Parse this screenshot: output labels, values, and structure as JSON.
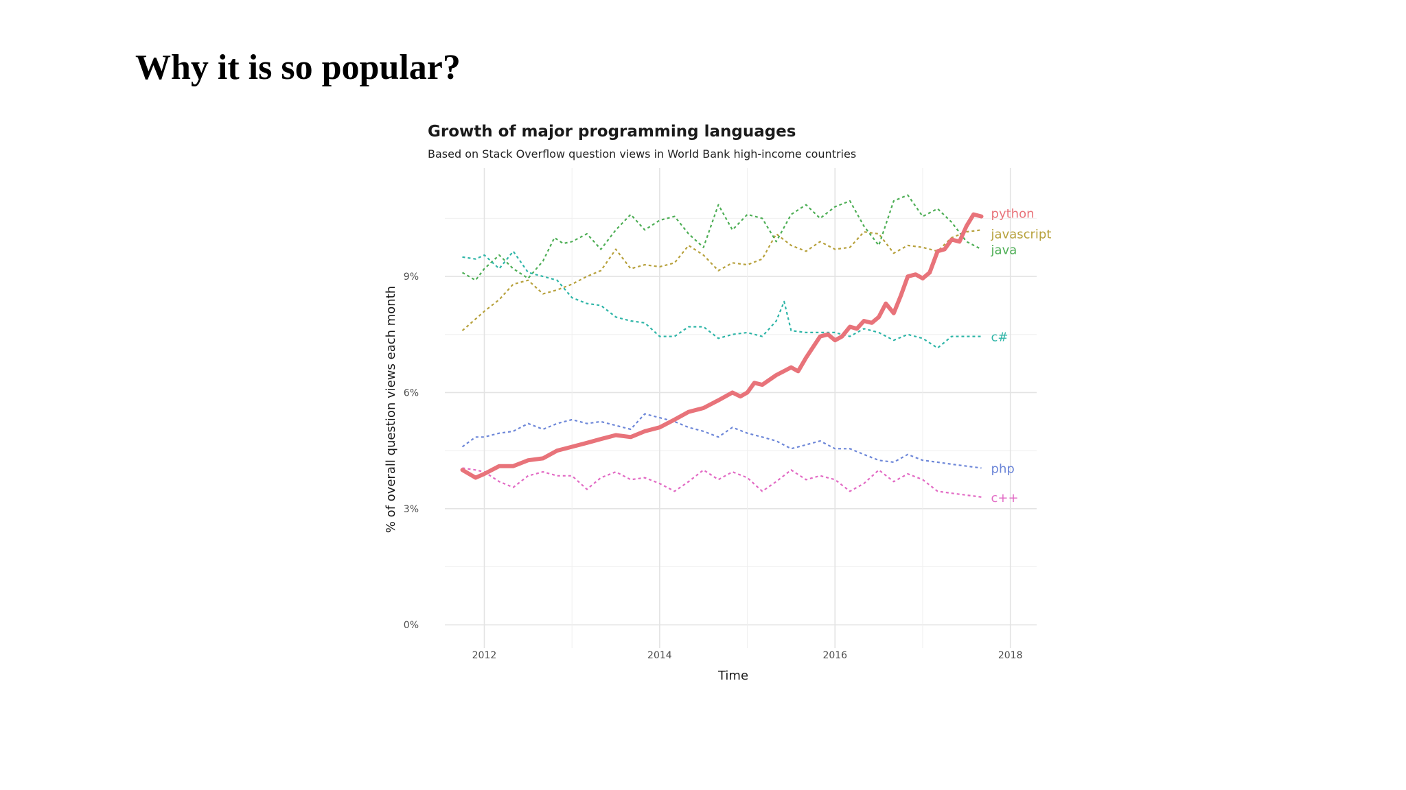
{
  "slide": {
    "title": "Why it is so popular?"
  },
  "chart_data": {
    "type": "line",
    "title": "Growth of major programming languages",
    "subtitle": "Based on Stack Overflow question views in World Bank high-income countries",
    "xlabel": "Time",
    "ylabel": "% of overall question views each month",
    "xlim": [
      2011.55,
      2018.3
    ],
    "ylim": [
      -0.6,
      11.8
    ],
    "x_ticks": [
      2012,
      2014,
      2016,
      2018
    ],
    "x_tick_labels": [
      "2012",
      "2014",
      "2016",
      "2018"
    ],
    "y_ticks": [
      0,
      3,
      6,
      9
    ],
    "y_tick_labels": [
      "0%",
      "3%",
      "6%",
      "9%"
    ],
    "grid": true,
    "legend": "direct labels at right end of lines",
    "series": [
      {
        "name": "python",
        "color": "#E8737A",
        "style": "solid",
        "points": [
          [
            2011.75,
            4.0
          ],
          [
            2011.9,
            3.8
          ],
          [
            2012.0,
            3.9
          ],
          [
            2012.17,
            4.1
          ],
          [
            2012.33,
            4.1
          ],
          [
            2012.5,
            4.25
          ],
          [
            2012.67,
            4.3
          ],
          [
            2012.83,
            4.5
          ],
          [
            2013.0,
            4.6
          ],
          [
            2013.17,
            4.7
          ],
          [
            2013.33,
            4.8
          ],
          [
            2013.5,
            4.9
          ],
          [
            2013.67,
            4.85
          ],
          [
            2013.83,
            5.0
          ],
          [
            2014.0,
            5.1
          ],
          [
            2014.17,
            5.3
          ],
          [
            2014.33,
            5.5
          ],
          [
            2014.5,
            5.6
          ],
          [
            2014.67,
            5.8
          ],
          [
            2014.83,
            6.0
          ],
          [
            2014.92,
            5.9
          ],
          [
            2015.0,
            6.0
          ],
          [
            2015.08,
            6.25
          ],
          [
            2015.17,
            6.2
          ],
          [
            2015.33,
            6.45
          ],
          [
            2015.5,
            6.65
          ],
          [
            2015.58,
            6.55
          ],
          [
            2015.67,
            6.9
          ],
          [
            2015.83,
            7.45
          ],
          [
            2015.92,
            7.5
          ],
          [
            2016.0,
            7.35
          ],
          [
            2016.08,
            7.45
          ],
          [
            2016.17,
            7.7
          ],
          [
            2016.25,
            7.65
          ],
          [
            2016.33,
            7.85
          ],
          [
            2016.42,
            7.8
          ],
          [
            2016.5,
            7.95
          ],
          [
            2016.58,
            8.3
          ],
          [
            2016.67,
            8.05
          ],
          [
            2016.75,
            8.5
          ],
          [
            2016.83,
            9.0
          ],
          [
            2016.92,
            9.05
          ],
          [
            2017.0,
            8.95
          ],
          [
            2017.08,
            9.1
          ],
          [
            2017.17,
            9.65
          ],
          [
            2017.25,
            9.7
          ],
          [
            2017.33,
            9.95
          ],
          [
            2017.42,
            9.9
          ],
          [
            2017.5,
            10.3
          ],
          [
            2017.58,
            10.6
          ],
          [
            2017.67,
            10.55
          ]
        ]
      },
      {
        "name": "javascript",
        "color": "#B7A13C",
        "style": "dashed",
        "points": [
          [
            2011.75,
            7.6
          ],
          [
            2011.9,
            7.9
          ],
          [
            2012.0,
            8.1
          ],
          [
            2012.17,
            8.4
          ],
          [
            2012.33,
            8.8
          ],
          [
            2012.5,
            8.9
          ],
          [
            2012.67,
            8.55
          ],
          [
            2012.83,
            8.65
          ],
          [
            2013.0,
            8.8
          ],
          [
            2013.17,
            9.0
          ],
          [
            2013.33,
            9.15
          ],
          [
            2013.5,
            9.7
          ],
          [
            2013.67,
            9.2
          ],
          [
            2013.83,
            9.3
          ],
          [
            2014.0,
            9.25
          ],
          [
            2014.17,
            9.35
          ],
          [
            2014.33,
            9.8
          ],
          [
            2014.5,
            9.55
          ],
          [
            2014.67,
            9.15
          ],
          [
            2014.83,
            9.35
          ],
          [
            2015.0,
            9.3
          ],
          [
            2015.17,
            9.45
          ],
          [
            2015.33,
            10.1
          ],
          [
            2015.5,
            9.8
          ],
          [
            2015.67,
            9.65
          ],
          [
            2015.83,
            9.9
          ],
          [
            2016.0,
            9.7
          ],
          [
            2016.17,
            9.75
          ],
          [
            2016.33,
            10.15
          ],
          [
            2016.5,
            10.1
          ],
          [
            2016.67,
            9.6
          ],
          [
            2016.83,
            9.8
          ],
          [
            2017.0,
            9.75
          ],
          [
            2017.17,
            9.65
          ],
          [
            2017.33,
            10.0
          ],
          [
            2017.5,
            10.15
          ],
          [
            2017.67,
            10.2
          ]
        ]
      },
      {
        "name": "java",
        "color": "#4DAE55",
        "style": "dashed",
        "points": [
          [
            2011.75,
            9.1
          ],
          [
            2011.9,
            8.9
          ],
          [
            2012.0,
            9.2
          ],
          [
            2012.17,
            9.55
          ],
          [
            2012.33,
            9.2
          ],
          [
            2012.5,
            8.95
          ],
          [
            2012.67,
            9.4
          ],
          [
            2012.8,
            10.0
          ],
          [
            2012.9,
            9.85
          ],
          [
            2013.0,
            9.9
          ],
          [
            2013.17,
            10.1
          ],
          [
            2013.33,
            9.7
          ],
          [
            2013.5,
            10.2
          ],
          [
            2013.67,
            10.6
          ],
          [
            2013.83,
            10.2
          ],
          [
            2014.0,
            10.45
          ],
          [
            2014.17,
            10.55
          ],
          [
            2014.33,
            10.1
          ],
          [
            2014.5,
            9.75
          ],
          [
            2014.67,
            10.85
          ],
          [
            2014.83,
            10.2
          ],
          [
            2015.0,
            10.6
          ],
          [
            2015.17,
            10.5
          ],
          [
            2015.33,
            9.9
          ],
          [
            2015.5,
            10.6
          ],
          [
            2015.67,
            10.85
          ],
          [
            2015.83,
            10.5
          ],
          [
            2016.0,
            10.8
          ],
          [
            2016.17,
            10.95
          ],
          [
            2016.33,
            10.3
          ],
          [
            2016.5,
            9.8
          ],
          [
            2016.67,
            10.95
          ],
          [
            2016.83,
            11.1
          ],
          [
            2017.0,
            10.55
          ],
          [
            2017.17,
            10.75
          ],
          [
            2017.33,
            10.4
          ],
          [
            2017.5,
            9.9
          ],
          [
            2017.67,
            9.7
          ]
        ]
      },
      {
        "name": "c#",
        "color": "#2EB5A7",
        "style": "dashed",
        "points": [
          [
            2011.75,
            9.5
          ],
          [
            2011.9,
            9.45
          ],
          [
            2012.0,
            9.55
          ],
          [
            2012.17,
            9.2
          ],
          [
            2012.33,
            9.65
          ],
          [
            2012.5,
            9.1
          ],
          [
            2012.67,
            9.0
          ],
          [
            2012.83,
            8.9
          ],
          [
            2013.0,
            8.45
          ],
          [
            2013.17,
            8.3
          ],
          [
            2013.33,
            8.25
          ],
          [
            2013.5,
            7.95
          ],
          [
            2013.67,
            7.85
          ],
          [
            2013.83,
            7.8
          ],
          [
            2014.0,
            7.45
          ],
          [
            2014.17,
            7.45
          ],
          [
            2014.33,
            7.7
          ],
          [
            2014.5,
            7.7
          ],
          [
            2014.67,
            7.4
          ],
          [
            2014.83,
            7.5
          ],
          [
            2015.0,
            7.55
          ],
          [
            2015.17,
            7.45
          ],
          [
            2015.33,
            7.85
          ],
          [
            2015.42,
            8.35
          ],
          [
            2015.5,
            7.6
          ],
          [
            2015.67,
            7.55
          ],
          [
            2015.83,
            7.55
          ],
          [
            2016.0,
            7.55
          ],
          [
            2016.17,
            7.45
          ],
          [
            2016.33,
            7.65
          ],
          [
            2016.5,
            7.55
          ],
          [
            2016.67,
            7.35
          ],
          [
            2016.83,
            7.5
          ],
          [
            2017.0,
            7.4
          ],
          [
            2017.17,
            7.15
          ],
          [
            2017.33,
            7.45
          ],
          [
            2017.5,
            7.45
          ],
          [
            2017.67,
            7.45
          ]
        ]
      },
      {
        "name": "php",
        "color": "#6C86D8",
        "style": "dashed",
        "points": [
          [
            2011.75,
            4.6
          ],
          [
            2011.9,
            4.85
          ],
          [
            2012.0,
            4.85
          ],
          [
            2012.17,
            4.95
          ],
          [
            2012.33,
            5.0
          ],
          [
            2012.5,
            5.2
          ],
          [
            2012.67,
            5.05
          ],
          [
            2012.83,
            5.2
          ],
          [
            2013.0,
            5.3
          ],
          [
            2013.17,
            5.2
          ],
          [
            2013.33,
            5.25
          ],
          [
            2013.5,
            5.15
          ],
          [
            2013.67,
            5.05
          ],
          [
            2013.83,
            5.45
          ],
          [
            2014.0,
            5.35
          ],
          [
            2014.17,
            5.25
          ],
          [
            2014.33,
            5.1
          ],
          [
            2014.5,
            5.0
          ],
          [
            2014.67,
            4.85
          ],
          [
            2014.83,
            5.1
          ],
          [
            2015.0,
            4.95
          ],
          [
            2015.17,
            4.85
          ],
          [
            2015.33,
            4.75
          ],
          [
            2015.5,
            4.55
          ],
          [
            2015.67,
            4.65
          ],
          [
            2015.83,
            4.75
          ],
          [
            2016.0,
            4.55
          ],
          [
            2016.17,
            4.55
          ],
          [
            2016.33,
            4.4
          ],
          [
            2016.5,
            4.25
          ],
          [
            2016.67,
            4.2
          ],
          [
            2016.83,
            4.4
          ],
          [
            2017.0,
            4.25
          ],
          [
            2017.17,
            4.2
          ],
          [
            2017.33,
            4.15
          ],
          [
            2017.5,
            4.1
          ],
          [
            2017.67,
            4.05
          ]
        ]
      },
      {
        "name": "c++",
        "color": "#E26AC4",
        "style": "dashed",
        "points": [
          [
            2011.75,
            4.05
          ],
          [
            2011.9,
            4.0
          ],
          [
            2012.0,
            3.95
          ],
          [
            2012.17,
            3.7
          ],
          [
            2012.33,
            3.55
          ],
          [
            2012.5,
            3.85
          ],
          [
            2012.67,
            3.95
          ],
          [
            2012.83,
            3.85
          ],
          [
            2013.0,
            3.85
          ],
          [
            2013.17,
            3.5
          ],
          [
            2013.33,
            3.8
          ],
          [
            2013.5,
            3.95
          ],
          [
            2013.67,
            3.75
          ],
          [
            2013.83,
            3.8
          ],
          [
            2014.0,
            3.65
          ],
          [
            2014.17,
            3.45
          ],
          [
            2014.33,
            3.7
          ],
          [
            2014.5,
            4.0
          ],
          [
            2014.67,
            3.75
          ],
          [
            2014.83,
            3.95
          ],
          [
            2015.0,
            3.8
          ],
          [
            2015.17,
            3.45
          ],
          [
            2015.33,
            3.7
          ],
          [
            2015.5,
            4.0
          ],
          [
            2015.67,
            3.75
          ],
          [
            2015.83,
            3.85
          ],
          [
            2016.0,
            3.75
          ],
          [
            2016.17,
            3.45
          ],
          [
            2016.33,
            3.65
          ],
          [
            2016.5,
            4.0
          ],
          [
            2016.67,
            3.7
          ],
          [
            2016.83,
            3.9
          ],
          [
            2017.0,
            3.75
          ],
          [
            2017.17,
            3.45
          ],
          [
            2017.33,
            3.4
          ],
          [
            2017.5,
            3.35
          ],
          [
            2017.67,
            3.3
          ]
        ]
      }
    ]
  }
}
